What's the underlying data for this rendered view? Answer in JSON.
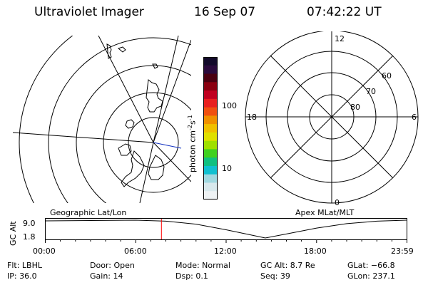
{
  "header": {
    "title": "Ultraviolet Imager",
    "date": "16 Sep 07",
    "time": "07:42:22 UT"
  },
  "colorbar": {
    "label": "photon cm",
    "exp1": "-2",
    "mid": "s",
    "exp2": "-1",
    "ticks": [
      "100",
      "10"
    ],
    "colors": [
      "#120a2a",
      "#2a0a3c",
      "#4a0010",
      "#8a0010",
      "#c00020",
      "#e82020",
      "#f05010",
      "#f09000",
      "#f0c000",
      "#e0e000",
      "#a0e000",
      "#40d020",
      "#10c080",
      "#10c0d0",
      "#a0d8e0",
      "#d8e8ec",
      "#eef2f4"
    ]
  },
  "geo_panel": {
    "label": "Geographic Lat/Lon"
  },
  "apex_panel": {
    "label": "Apex  MLat/MLT",
    "mlt_labels": {
      "top": "12",
      "bottom": "0",
      "left": "18",
      "right": "6"
    },
    "lat_labels": [
      "60",
      "70",
      "80"
    ]
  },
  "timeline": {
    "axis_label": "GC Alt",
    "y_ticks": [
      "9.0",
      "1.8"
    ],
    "x_ticks": [
      "00:00",
      "06:00",
      "12:00",
      "18:00",
      "23:59"
    ],
    "marker_hours": 7.706,
    "marker_color": "#ff0000",
    "altitude_curve": [
      {
        "t": 0.0,
        "alt": 8.7
      },
      {
        "t": 6.0,
        "alt": 9.0
      },
      {
        "t": 8.0,
        "alt": 8.6
      },
      {
        "t": 10.0,
        "alt": 7.4
      },
      {
        "t": 12.0,
        "alt": 5.1
      },
      {
        "t": 13.5,
        "alt": 3.2
      },
      {
        "t": 14.6,
        "alt": 1.8
      },
      {
        "t": 16.0,
        "alt": 3.4
      },
      {
        "t": 18.0,
        "alt": 5.8
      },
      {
        "t": 20.0,
        "alt": 7.6
      },
      {
        "t": 22.0,
        "alt": 8.6
      },
      {
        "t": 23.98,
        "alt": 9.0
      }
    ]
  },
  "info": {
    "flt": "Flt: LBHL",
    "ip": "IP: 36.0",
    "door": "Door: Open",
    "gain": "Gain: 14",
    "mode": "Mode: Normal",
    "dsp": "Dsp:     0.1",
    "gcalt": "GC Alt: 8.7 Re",
    "seq": "Seq: 39",
    "glat": "GLat: −66.8",
    "glon": "GLon: 237.1"
  }
}
